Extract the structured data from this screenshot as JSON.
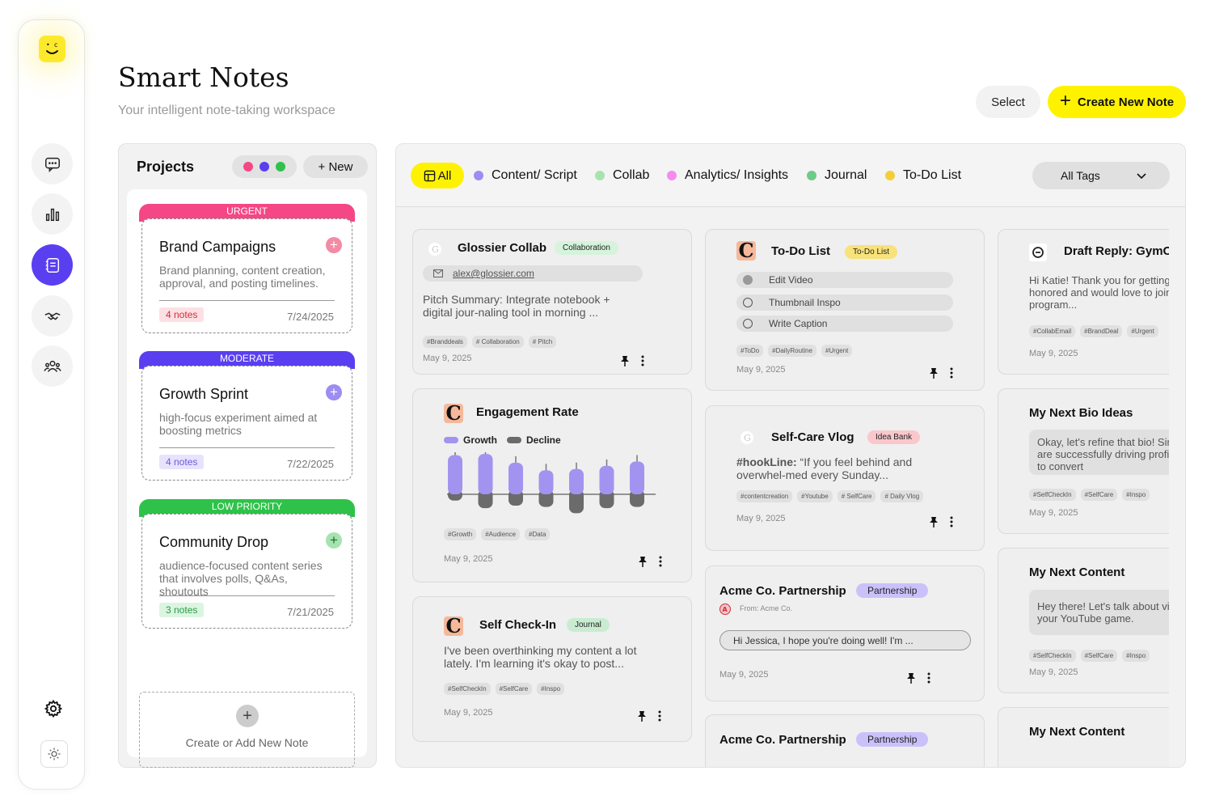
{
  "header": {
    "title": "Smart Notes",
    "subtitle": "Your intelligent note-taking workspace",
    "select_label": "Select",
    "create_label": "Create New Note"
  },
  "sidebar": {
    "items": [
      "chat-icon",
      "chart-icon",
      "notes-icon",
      "handshake-icon",
      "team-icon"
    ],
    "active": "notes-icon"
  },
  "projects": {
    "title": "Projects",
    "new_label": "+ New",
    "dots": [
      "#f54785",
      "#5a3ff0",
      "#2ec24a"
    ],
    "items": [
      {
        "priority": "URGENT",
        "name": "Brand Campaigns",
        "description": "Brand planning, content creation, approval, and posting timelines.",
        "notes": "4 notes",
        "date": "7/24/2025",
        "color": "#f54785",
        "badge_bg": "#fde0e3",
        "badge_color": "#d22d3c"
      },
      {
        "priority": "MODERATE",
        "name": "Growth Sprint",
        "description": "high-focus experiment aimed at boosting metrics",
        "notes": "4 notes",
        "date": "7/22/2025",
        "color": "#5a3ff0",
        "badge_bg": "#e8e3fc",
        "badge_color": "#6b5bd8"
      },
      {
        "priority": "LOW PRIORITY",
        "name": "Community Drop",
        "description": "audience-focused content series that involves polls, Q&As, shoutouts",
        "notes": "3 notes",
        "date": "7/21/2025",
        "color": "#2ec24a",
        "badge_bg": "#dcf5e1",
        "badge_color": "#2a9b45"
      }
    ],
    "add_label": "Create or Add New Note"
  },
  "filters": {
    "all_label": "All",
    "items": [
      {
        "label": "Content/ Script",
        "color": "#9d8cf2"
      },
      {
        "label": "Collab",
        "color": "#a6e3b0"
      },
      {
        "label": "Analytics/ Insights",
        "color": "#f48cf0"
      },
      {
        "label": "Journal",
        "color": "#6fcb85"
      },
      {
        "label": "To-Do List",
        "color": "#f2cf3a"
      }
    ],
    "tags_label": "All Tags"
  },
  "cards": {
    "glossier": {
      "title": "Glossier Collab",
      "pill": "Collaboration",
      "email": "alex@glossier.com",
      "text": "Pitch Summary: Integrate notebook + digital jour-naling tool in morning ...",
      "tags": [
        "#Branddeals",
        "# Collaboration",
        "# Pitch"
      ],
      "date": "May 9, 2025"
    },
    "engagement": {
      "title": "Engagement Rate",
      "legend_growth": "Growth",
      "legend_decline": "Decline",
      "tags": [
        "#Growth",
        "#Audience",
        "#Data"
      ],
      "date": "May 9, 2025"
    },
    "selfcheck": {
      "title": "Self Check-In",
      "pill": "Journal",
      "text": "I've been overthinking my content a lot lately. I'm learning it's okay to post...",
      "tags": [
        "#SelfCheckIn",
        "#SelfCare",
        "#Inspo"
      ],
      "date": "May 9, 2025"
    },
    "todo": {
      "title": "To-Do List",
      "pill": "To-Do List",
      "items": [
        "Edit Video",
        "Thumbnail Inspo",
        "Write Caption"
      ],
      "tags": [
        "#ToDo",
        "#DailyRoutine",
        "#Urgent"
      ],
      "date": "May 9, 2025"
    },
    "selfcare": {
      "title": "Self-Care Vlog",
      "pill": "Idea Bank",
      "hook_label": "#hookLine:",
      "text": " “If you feel behind and overwhel-med every Sunday...",
      "tags": [
        "#contentcreation",
        "#Youtube",
        "# SelfCare",
        "# Daily Vlog"
      ],
      "date": "May 9, 2025"
    },
    "acme": {
      "title": "Acme Co. Partnership",
      "pill": "Partnership",
      "from": "From: Acme Co.",
      "reply": "Hi Jessica, I hope you're doing well! I'm ...",
      "date": "May 9, 2025"
    },
    "acme2": {
      "title": "Acme Co. Partnership",
      "pill": "Partnership"
    },
    "draft": {
      "title": "Draft Reply: GymCo",
      "text": "Hi Katie! Thank you for getting in touch. I am honored and would love to join your partnership program...",
      "tags": [
        "#CollabEmail",
        "#BrandDeal",
        "#Urgent"
      ],
      "date": "May 9, 2025"
    },
    "bio": {
      "title": "My Next Bio Ideas",
      "text": "Okay, let's refine that bio! Since your videos are successfully driving profile visits, the key is to convert",
      "tags": [
        "#SelfCheckIn",
        "#SelfCare",
        "#Inspo"
      ],
      "date": "May 9, 2025"
    },
    "content": {
      "title": "My Next Content",
      "text": "Hey there! Let's talk about videos that boost your YouTube game.",
      "tags": [
        "#SelfCheckIn",
        "#SelfCare",
        "#Inspo"
      ],
      "date": "May 9, 2025"
    },
    "content2": {
      "title": "My Next Content"
    }
  },
  "chart_data": {
    "type": "bar",
    "series": [
      {
        "name": "Growth",
        "values": [
          62,
          64,
          50,
          38,
          40,
          45,
          52
        ]
      },
      {
        "name": "Decline",
        "values": [
          10,
          22,
          18,
          20,
          30,
          22,
          20
        ]
      }
    ],
    "colors": {
      "growth": "#a393f0",
      "decline": "#6b6b6b"
    },
    "xlabel": "",
    "ylabel": ""
  }
}
